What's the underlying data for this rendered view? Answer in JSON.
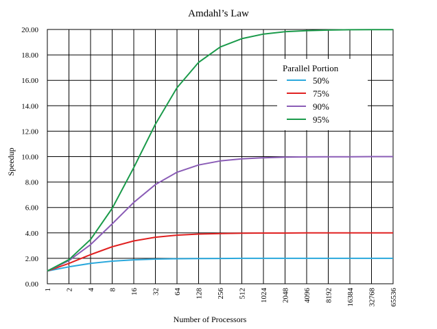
{
  "chart_data": {
    "type": "line",
    "title": "Amdahl’s Law",
    "xlabel": "Number of Processors",
    "ylabel": "Speedup",
    "x_ticks": [
      "1",
      "2",
      "4",
      "8",
      "16",
      "32",
      "64",
      "128",
      "256",
      "512",
      "1024",
      "2048",
      "4096",
      "8192",
      "16384",
      "32768",
      "65536"
    ],
    "y_ticks": [
      "0.00",
      "2.00",
      "4.00",
      "6.00",
      "8.00",
      "10.00",
      "12.00",
      "14.00",
      "16.00",
      "18.00",
      "20.00"
    ],
    "ylim": [
      0,
      20
    ],
    "grid": true,
    "legend": {
      "title": "Parallel Portion",
      "placement": "top-right"
    },
    "series": [
      {
        "name": "50%",
        "color": "#2aa8dc",
        "values": [
          1.0,
          1.33,
          1.6,
          1.78,
          1.88,
          1.94,
          1.97,
          1.98,
          1.99,
          2.0,
          2.0,
          2.0,
          2.0,
          2.0,
          2.0,
          2.0,
          2.0
        ]
      },
      {
        "name": "75%",
        "color": "#e02020",
        "values": [
          1.0,
          1.6,
          2.29,
          2.91,
          3.37,
          3.66,
          3.82,
          3.91,
          3.95,
          3.98,
          3.99,
          3.99,
          4.0,
          4.0,
          4.0,
          4.0,
          4.0
        ]
      },
      {
        "name": "90%",
        "color": "#8a5cb6",
        "values": [
          1.0,
          1.82,
          3.08,
          4.71,
          6.4,
          7.8,
          8.77,
          9.34,
          9.66,
          9.83,
          9.91,
          9.96,
          9.98,
          9.99,
          9.99,
          10.0,
          10.0
        ]
      },
      {
        "name": "95%",
        "color": "#1a9a4a",
        "values": [
          1.0,
          1.9,
          3.48,
          5.93,
          9.14,
          12.55,
          15.42,
          17.41,
          18.62,
          19.28,
          19.64,
          19.82,
          19.91,
          19.95,
          19.98,
          19.99,
          19.99
        ]
      }
    ]
  }
}
